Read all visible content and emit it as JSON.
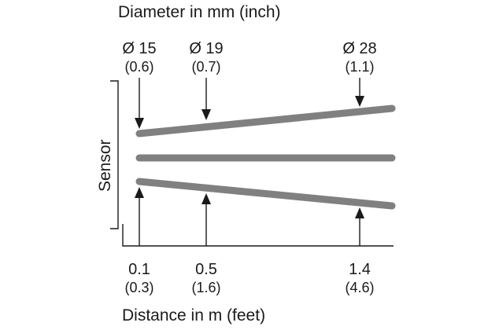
{
  "top_title": "Diameter in mm (inch)",
  "bottom_title": "Distance in m (feet)",
  "sensor_label": "Sensor",
  "diameters": [
    {
      "main": "Ø 15",
      "sub": "(0.6)"
    },
    {
      "main": "Ø 19",
      "sub": "(0.7)"
    },
    {
      "main": "Ø 28",
      "sub": "(1.1)"
    }
  ],
  "distances": [
    {
      "main": "0.1",
      "sub": "(0.3)"
    },
    {
      "main": "0.5",
      "sub": "(1.6)"
    },
    {
      "main": "1.4",
      "sub": "(4.6)"
    }
  ],
  "colors": {
    "beam": "#808080",
    "ink": "#1a1a1a"
  }
}
